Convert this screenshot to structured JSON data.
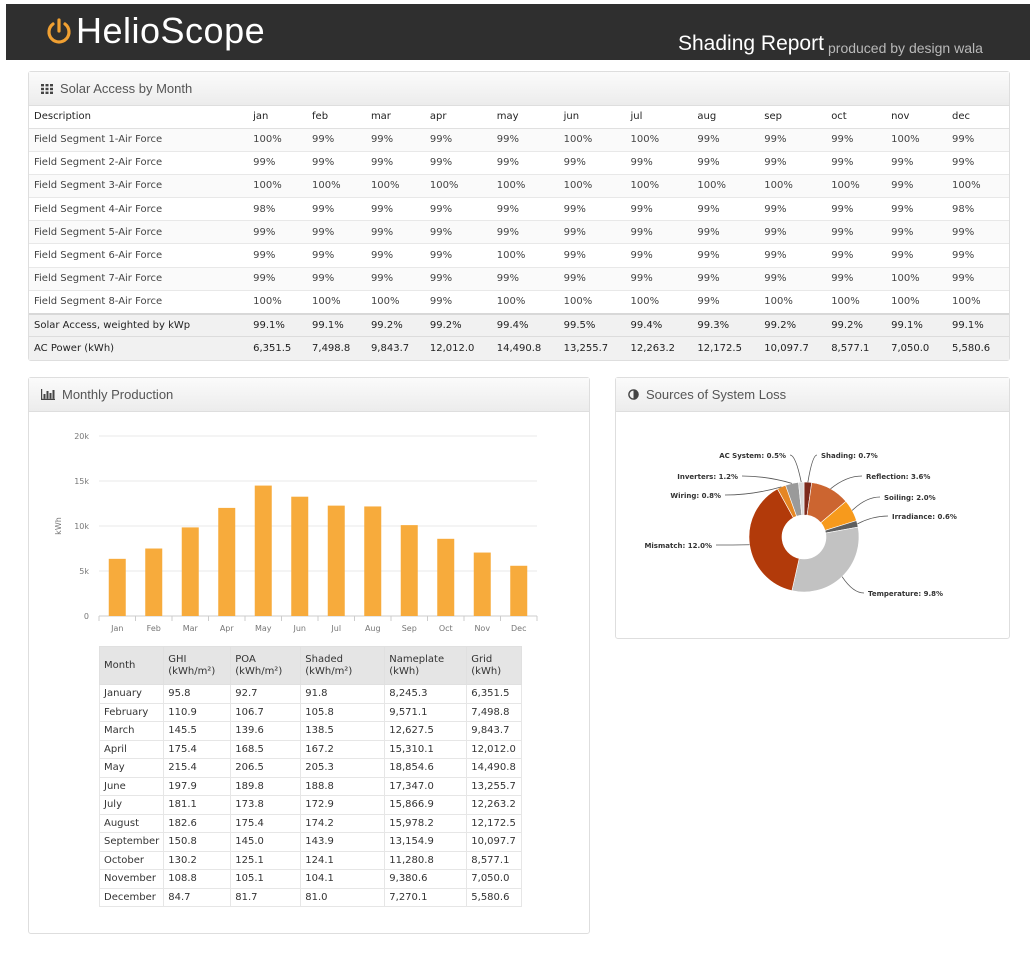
{
  "header": {
    "logo_text": "HelioScope",
    "report_title": "Shading Report",
    "report_sub": "produced by design wala"
  },
  "solar_access": {
    "title": "Solar Access by Month",
    "columns": [
      "Description",
      "jan",
      "feb",
      "mar",
      "apr",
      "may",
      "jun",
      "jul",
      "aug",
      "sep",
      "oct",
      "nov",
      "dec"
    ],
    "rows": [
      [
        "Field Segment 1-Air Force",
        "100%",
        "99%",
        "99%",
        "99%",
        "99%",
        "100%",
        "100%",
        "99%",
        "99%",
        "99%",
        "100%",
        "99%"
      ],
      [
        "Field Segment 2-Air Force",
        "99%",
        "99%",
        "99%",
        "99%",
        "99%",
        "99%",
        "99%",
        "99%",
        "99%",
        "99%",
        "99%",
        "99%"
      ],
      [
        "Field Segment 3-Air Force",
        "100%",
        "100%",
        "100%",
        "100%",
        "100%",
        "100%",
        "100%",
        "100%",
        "100%",
        "100%",
        "99%",
        "100%"
      ],
      [
        "Field Segment 4-Air Force",
        "98%",
        "99%",
        "99%",
        "99%",
        "99%",
        "99%",
        "99%",
        "99%",
        "99%",
        "99%",
        "99%",
        "98%"
      ],
      [
        "Field Segment 5-Air Force",
        "99%",
        "99%",
        "99%",
        "99%",
        "99%",
        "99%",
        "99%",
        "99%",
        "99%",
        "99%",
        "99%",
        "99%"
      ],
      [
        "Field Segment 6-Air Force",
        "99%",
        "99%",
        "99%",
        "99%",
        "100%",
        "99%",
        "99%",
        "99%",
        "99%",
        "99%",
        "99%",
        "99%"
      ],
      [
        "Field Segment 7-Air Force",
        "99%",
        "99%",
        "99%",
        "99%",
        "99%",
        "99%",
        "99%",
        "99%",
        "99%",
        "99%",
        "100%",
        "99%"
      ],
      [
        "Field Segment 8-Air Force",
        "100%",
        "100%",
        "100%",
        "99%",
        "100%",
        "100%",
        "100%",
        "99%",
        "100%",
        "100%",
        "100%",
        "100%"
      ]
    ],
    "footer_rows": [
      [
        "Solar Access, weighted by kWp",
        "99.1%",
        "99.1%",
        "99.2%",
        "99.2%",
        "99.4%",
        "99.5%",
        "99.4%",
        "99.3%",
        "99.2%",
        "99.2%",
        "99.1%",
        "99.1%"
      ],
      [
        "AC Power (kWh)",
        "6,351.5",
        "7,498.8",
        "9,843.7",
        "12,012.0",
        "14,490.8",
        "13,255.7",
        "12,263.2",
        "12,172.5",
        "10,097.7",
        "8,577.1",
        "7,050.0",
        "5,580.6"
      ]
    ]
  },
  "production": {
    "title": "Monthly Production",
    "table_headers": [
      {
        "line1": "Month",
        "line2": ""
      },
      {
        "line1": "GHI",
        "line2": "(kWh/m²)"
      },
      {
        "line1": "POA",
        "line2": "(kWh/m²)"
      },
      {
        "line1": "Shaded",
        "line2": "(kWh/m²)"
      },
      {
        "line1": "Nameplate",
        "line2": "(kWh)"
      },
      {
        "line1": "Grid",
        "line2": "(kWh)"
      }
    ],
    "table_rows": [
      [
        "January",
        "95.8",
        "92.7",
        "91.8",
        "8,245.3",
        "6,351.5"
      ],
      [
        "February",
        "110.9",
        "106.7",
        "105.8",
        "9,571.1",
        "7,498.8"
      ],
      [
        "March",
        "145.5",
        "139.6",
        "138.5",
        "12,627.5",
        "9,843.7"
      ],
      [
        "April",
        "175.4",
        "168.5",
        "167.2",
        "15,310.1",
        "12,012.0"
      ],
      [
        "May",
        "215.4",
        "206.5",
        "205.3",
        "18,854.6",
        "14,490.8"
      ],
      [
        "June",
        "197.9",
        "189.8",
        "188.8",
        "17,347.0",
        "13,255.7"
      ],
      [
        "July",
        "181.1",
        "173.8",
        "172.9",
        "15,866.9",
        "12,263.2"
      ],
      [
        "August",
        "182.6",
        "175.4",
        "174.2",
        "15,978.2",
        "12,172.5"
      ],
      [
        "September",
        "150.8",
        "145.0",
        "143.9",
        "13,154.9",
        "10,097.7"
      ],
      [
        "October",
        "130.2",
        "125.1",
        "124.1",
        "11,280.8",
        "8,577.1"
      ],
      [
        "November",
        "108.8",
        "105.1",
        "104.1",
        "9,380.6",
        "7,050.0"
      ],
      [
        "December",
        "84.7",
        "81.7",
        "81.0",
        "7,270.1",
        "5,580.6"
      ]
    ]
  },
  "losses": {
    "title": "Sources of System Loss"
  },
  "chart_data": [
    {
      "type": "bar",
      "title": "Monthly Production",
      "categories": [
        "Jan",
        "Feb",
        "Mar",
        "Apr",
        "May",
        "Jun",
        "Jul",
        "Aug",
        "Sep",
        "Oct",
        "Nov",
        "Dec"
      ],
      "values": [
        6351.5,
        7498.8,
        9843.7,
        12012.0,
        14490.8,
        13255.7,
        12263.2,
        12172.5,
        10097.7,
        8577.1,
        7050.0,
        5580.6
      ],
      "ylabel": "kWh",
      "xlabel": "",
      "ylim": [
        0,
        20000
      ],
      "yticks": [
        0,
        5000,
        10000,
        15000,
        20000
      ],
      "ytick_labels": [
        "0",
        "5k",
        "10k",
        "15k",
        "20k"
      ],
      "grid": true,
      "color": "#f7ab3c"
    },
    {
      "type": "pie",
      "title": "Sources of System Loss",
      "donut": true,
      "slices": [
        {
          "label": "Shading: 0.7%",
          "value": 0.7,
          "color": "#7d2a1c"
        },
        {
          "label": "Reflection: 3.6%",
          "value": 3.6,
          "color": "#cc6530"
        },
        {
          "label": "Soiling: 2.0%",
          "value": 2.0,
          "color": "#f79a1c"
        },
        {
          "label": "Irradiance: 0.6%",
          "value": 0.6,
          "color": "#5e5e5e"
        },
        {
          "label": "Temperature: 9.8%",
          "value": 9.8,
          "color": "#c2c2c2"
        },
        {
          "label": "Mismatch: 12.0%",
          "value": 12.0,
          "color": "#b23a0a"
        },
        {
          "label": "Wiring: 0.8%",
          "value": 0.8,
          "color": "#e58623"
        },
        {
          "label": "Inverters: 1.2%",
          "value": 1.2,
          "color": "#9a9a9a"
        },
        {
          "label": "AC System: 0.5%",
          "value": 0.5,
          "color": "#d9d9d9"
        }
      ]
    }
  ]
}
